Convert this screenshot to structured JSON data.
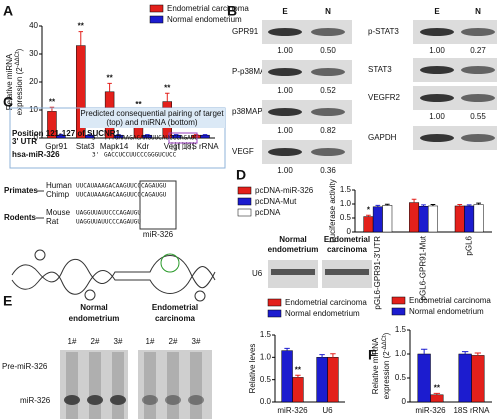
{
  "chart_data": [
    {
      "type": "bar",
      "panel_label": "A",
      "ylabel": [
        "Relative miRNA",
        "expression (2"
      ],
      "ylabel_sup": "-ΔΔCt",
      "ylabel_end": ")",
      "categories": [
        "Gpr91",
        "Stat3",
        "Mapk14",
        "Kdr",
        "Vegf",
        "18S rRNA"
      ],
      "series": [
        {
          "name": "Endometrial carcinoma",
          "color": "#e3201b",
          "values": [
            9.5,
            33,
            16.5,
            8.5,
            13,
            1
          ],
          "errors": [
            1.5,
            5,
            3,
            1.5,
            3,
            0.2
          ],
          "markers": [
            "**",
            "**",
            "**",
            "**",
            "**",
            null
          ]
        },
        {
          "name": "Normal endometrium",
          "color": "#1c1ccf",
          "values": [
            1,
            1,
            1,
            1,
            1,
            1
          ],
          "errors": [
            0.2,
            0.2,
            0.2,
            0.2,
            0.2,
            0.2
          ]
        }
      ],
      "ylim": [
        0,
        40
      ],
      "yticks": [
        0,
        10,
        20,
        30,
        40
      ]
    },
    {
      "type": "bar",
      "panel_label": "D",
      "ylabel": [
        "Luciferase activity"
      ],
      "categories": [
        "pGL6-GPR91-3'UTR",
        "pGL6-GPR91-Mut",
        "pGL6"
      ],
      "series": [
        {
          "name": "pcDNA-miR-326",
          "color": "#e3201b",
          "values": [
            0.55,
            1.05,
            0.93
          ],
          "errors": [
            0.05,
            0.12,
            0.05
          ],
          "markers": [
            "*",
            null,
            null
          ]
        },
        {
          "name": "pcDNA-Mut",
          "color": "#1c1ccf",
          "values": [
            0.9,
            0.92,
            0.93
          ],
          "errors": [
            0.05,
            0.05,
            0.04
          ]
        },
        {
          "name": "pcDNA",
          "color": "#ffffff",
          "values": [
            0.95,
            0.93,
            0.98
          ],
          "errors": [
            0.04,
            0.05,
            0.05
          ]
        }
      ],
      "ylim": [
        0,
        1.5
      ],
      "yticks": [
        0,
        0.5,
        {
          "value": 1,
          "label": "1.0"
        },
        1.5
      ]
    },
    {
      "type": "bar",
      "ylabel": [
        "Relative leves"
      ],
      "categories": [
        "miR-326",
        "U6"
      ],
      "series": [
        {
          "name": "Endometrial carcinoma",
          "color": "#e3201b",
          "values": [
            0.55,
            1.0
          ],
          "errors": [
            0.05,
            0.08
          ],
          "markers": [
            "**",
            null
          ]
        },
        {
          "name": "Normal endometrium",
          "color": "#1c1ccf",
          "values": [
            1.15,
            1.0
          ],
          "errors": [
            0.05,
            0.06
          ]
        }
      ],
      "ylim": [
        0,
        1.5
      ],
      "yticks": [
        {
          "value": 0,
          "label": "0.0"
        },
        0.5,
        {
          "value": 1,
          "label": "1.0"
        },
        1.5
      ]
    },
    {
      "type": "bar",
      "panel_label": "F",
      "ylabel": [
        "Relative miRNA",
        "expression (2"
      ],
      "ylabel_sup": "-ΔΔCt",
      "ylabel_end": ")",
      "categories": [
        "miR-326",
        "18S rRNA"
      ],
      "series": [
        {
          "name": "Endometrial carcinoma",
          "color": "#e3201b",
          "values": [
            0.15,
            0.97
          ],
          "errors": [
            0.03,
            0.05
          ],
          "markers": [
            "**",
            null
          ]
        },
        {
          "name": "Normal endometrium",
          "color": "#1c1ccf",
          "values": [
            1.0,
            1.0
          ],
          "errors": [
            0.1,
            0.05
          ]
        }
      ],
      "ylim": [
        0,
        1.5
      ],
      "yticks": [
        0,
        0.5,
        {
          "value": 1,
          "label": "1.0"
        },
        1.5
      ]
    }
  ],
  "blots": {
    "panel_label": "B",
    "left": {
      "headers": [
        "E",
        "N"
      ],
      "rows": [
        {
          "label": "GPR91",
          "values": [
            "1.00",
            "0.50"
          ]
        },
        {
          "label": "P-p38MAPK",
          "values": [
            "1.00",
            "0.52"
          ]
        },
        {
          "label": "p38MAPK",
          "values": [
            "1.00",
            "0.82"
          ]
        },
        {
          "label": "VEGF",
          "values": [
            "1.00",
            "0.36"
          ]
        }
      ]
    },
    "right": {
      "headers": [
        "E",
        "N"
      ],
      "rows": [
        {
          "label": "p-STAT3",
          "values": [
            "1.00",
            "0.27"
          ]
        },
        {
          "label": "STAT3"
        },
        {
          "label": "VEGFR2",
          "values": [
            "1.00",
            "0.55"
          ]
        },
        {
          "label": "GAPDH"
        }
      ]
    }
  },
  "alignment": {
    "panel_label": "C",
    "header": [
      "Predicted consequential pairing of target",
      "(top) and miRNA (bottom)"
    ],
    "target": {
      "label": [
        "Position 121-127 of SUCNR1",
        "3' UTR"
      ],
      "end": "5'",
      "sequence": "...UAAAGACAAGUUCAUCCCAGAUG"
    },
    "mirna": {
      "label": "hsa-miR-326",
      "end": "3'",
      "sequence": "GACCUCCUUCCCGGGUCUCC"
    },
    "species": [
      {
        "group": "Primates",
        "members": [
          {
            "name": "Human",
            "sequence": "UUCAUAAAGACAAGUUCCCAGAUGU"
          },
          {
            "name": "Chimp",
            "sequence": "UUCAUAAAGACAAGUUCCCAGAUGU"
          }
        ]
      },
      {
        "group": "Rodents",
        "members": [
          {
            "name": "Mouse",
            "sequence": "UAGGUUAUUCCCAGAUGU"
          },
          {
            "name": "Rat",
            "sequence": "UAGGUUAUUCCCAGAUGU"
          }
        ]
      }
    ],
    "site_label": "miR-326"
  },
  "gel": {
    "panel_label": "E",
    "groups": [
      [
        "Normal",
        "endometrium"
      ],
      [
        "Endometrial",
        "carcinoma"
      ]
    ],
    "lanes": [
      "1#",
      "2#",
      "3#",
      "1#",
      "2#",
      "3#"
    ],
    "bands": [
      "Pre-miR-326",
      "miR-326"
    ]
  },
  "u6_blot": {
    "groups": [
      [
        "Normal",
        "endometrium"
      ],
      [
        "Endometrial",
        "carcinoma"
      ]
    ],
    "label": "U6"
  }
}
